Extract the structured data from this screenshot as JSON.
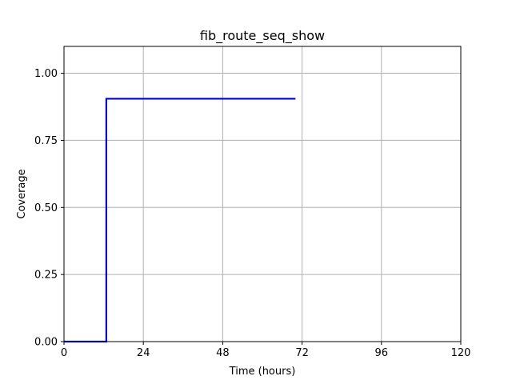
{
  "chart_data": {
    "type": "line",
    "title": "fib_route_seq_show",
    "xlabel": "Time (hours)",
    "ylabel": "Coverage",
    "xlim": [
      0,
      120
    ],
    "ylim": [
      0,
      1.1
    ],
    "xticks": [
      0,
      24,
      48,
      72,
      96,
      120
    ],
    "xtick_labels": [
      "0",
      "24",
      "48",
      "72",
      "96",
      "120"
    ],
    "yticks": [
      0,
      0.25,
      0.5,
      0.75,
      1.0
    ],
    "ytick_labels": [
      "0.00",
      "0.25",
      "0.50",
      "0.75",
      "1.00"
    ],
    "grid": true,
    "series": [
      {
        "color": "#0000cc",
        "step": "post",
        "x": [
          0,
          12.8,
          70
        ],
        "y": [
          0,
          0.905,
          0.905
        ]
      }
    ]
  }
}
